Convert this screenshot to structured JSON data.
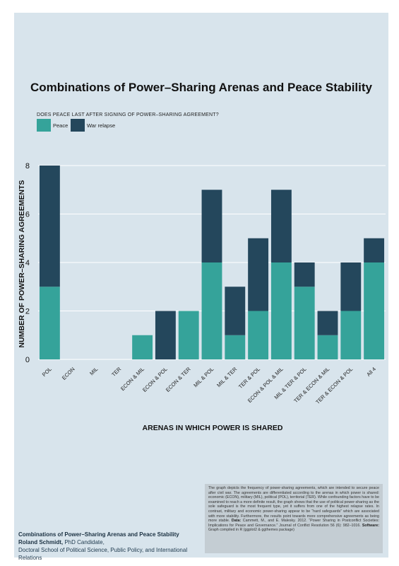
{
  "title": "Combinations of Power–Sharing Arenas and Peace Stability",
  "legend": {
    "title": "DOES PEACE LAST AFTER SIGNING OF POWER–SHARING AGREEMENT?",
    "items": [
      {
        "label": "Peace",
        "color": "#35a39a"
      },
      {
        "label": "War relapse",
        "color": "#24475c"
      }
    ]
  },
  "chart_data": {
    "type": "bar",
    "stacked": true,
    "title": "Combinations of Power–Sharing Arenas and Peace Stability",
    "xlabel": "ARENAS IN WHICH POWER IS SHARED",
    "ylabel": "NUMBER OF POWER–SHARING AGREEMENTS",
    "ylim": [
      0,
      8
    ],
    "yticks": [
      0,
      2,
      4,
      6,
      8
    ],
    "grid": true,
    "legend_position": "top-left",
    "categories": [
      "POL",
      "ECON",
      "MIL",
      "TER",
      "ECON & MIL",
      "ECON & POL",
      "ECON & TER",
      "MIL & POL",
      "MIL & TER",
      "TER & POL",
      "ECON & POL & MIL",
      "MIL & TER & POL",
      "TER & ECON & MIL",
      "TER & ECON & POL",
      "All 4"
    ],
    "series": [
      {
        "name": "Peace",
        "color": "#35a39a",
        "values": [
          3,
          0,
          0,
          0,
          1,
          0,
          2,
          4,
          1,
          2,
          4,
          3,
          1,
          2,
          4
        ]
      },
      {
        "name": "War relapse",
        "color": "#24475c",
        "values": [
          5,
          0,
          0,
          0,
          0,
          2,
          0,
          3,
          2,
          3,
          3,
          1,
          1,
          2,
          1
        ]
      }
    ]
  },
  "note": {
    "body": "The graph depicts the frequency of power-sharing agreements, which are intended to secure peace after civil war. The agreements are differentiated according to the arenas in which power is shared: economic (ECON), military (MIL), political (POL), territorial (TER). While confounding factors have to be examined to reach a more definite result, the graph shows that the use of political power-sharing as the sole safeguard is the most frequent type, yet it suffers from one of the highest relapse rates. In contrast, military and economic power-sharing appear to be “hard safeguards” which are associated with more stability. Furthermore, the results point towards more comprehensive agreements as being more stable.",
    "data_label": "Data:",
    "data_text": "Cammett, M., and E. Malesky. 2012. “Power Sharing in Postconflict Societies: Implications for Peace and Governance.” Journal of Conflict Resolution 56 (6): 982–1016.",
    "software_label": "Software:",
    "software_text": "Graph compiled in R (ggplot2 & ggthemes package)"
  },
  "credit": {
    "title": "Combinations of Power–Sharing Arenas and Peace Stability",
    "name": "Roland Schmidt,",
    "role": " PhD Candidate,",
    "affiliation": "Doctoral School of Political Science, Public Policy, and International Relations"
  }
}
